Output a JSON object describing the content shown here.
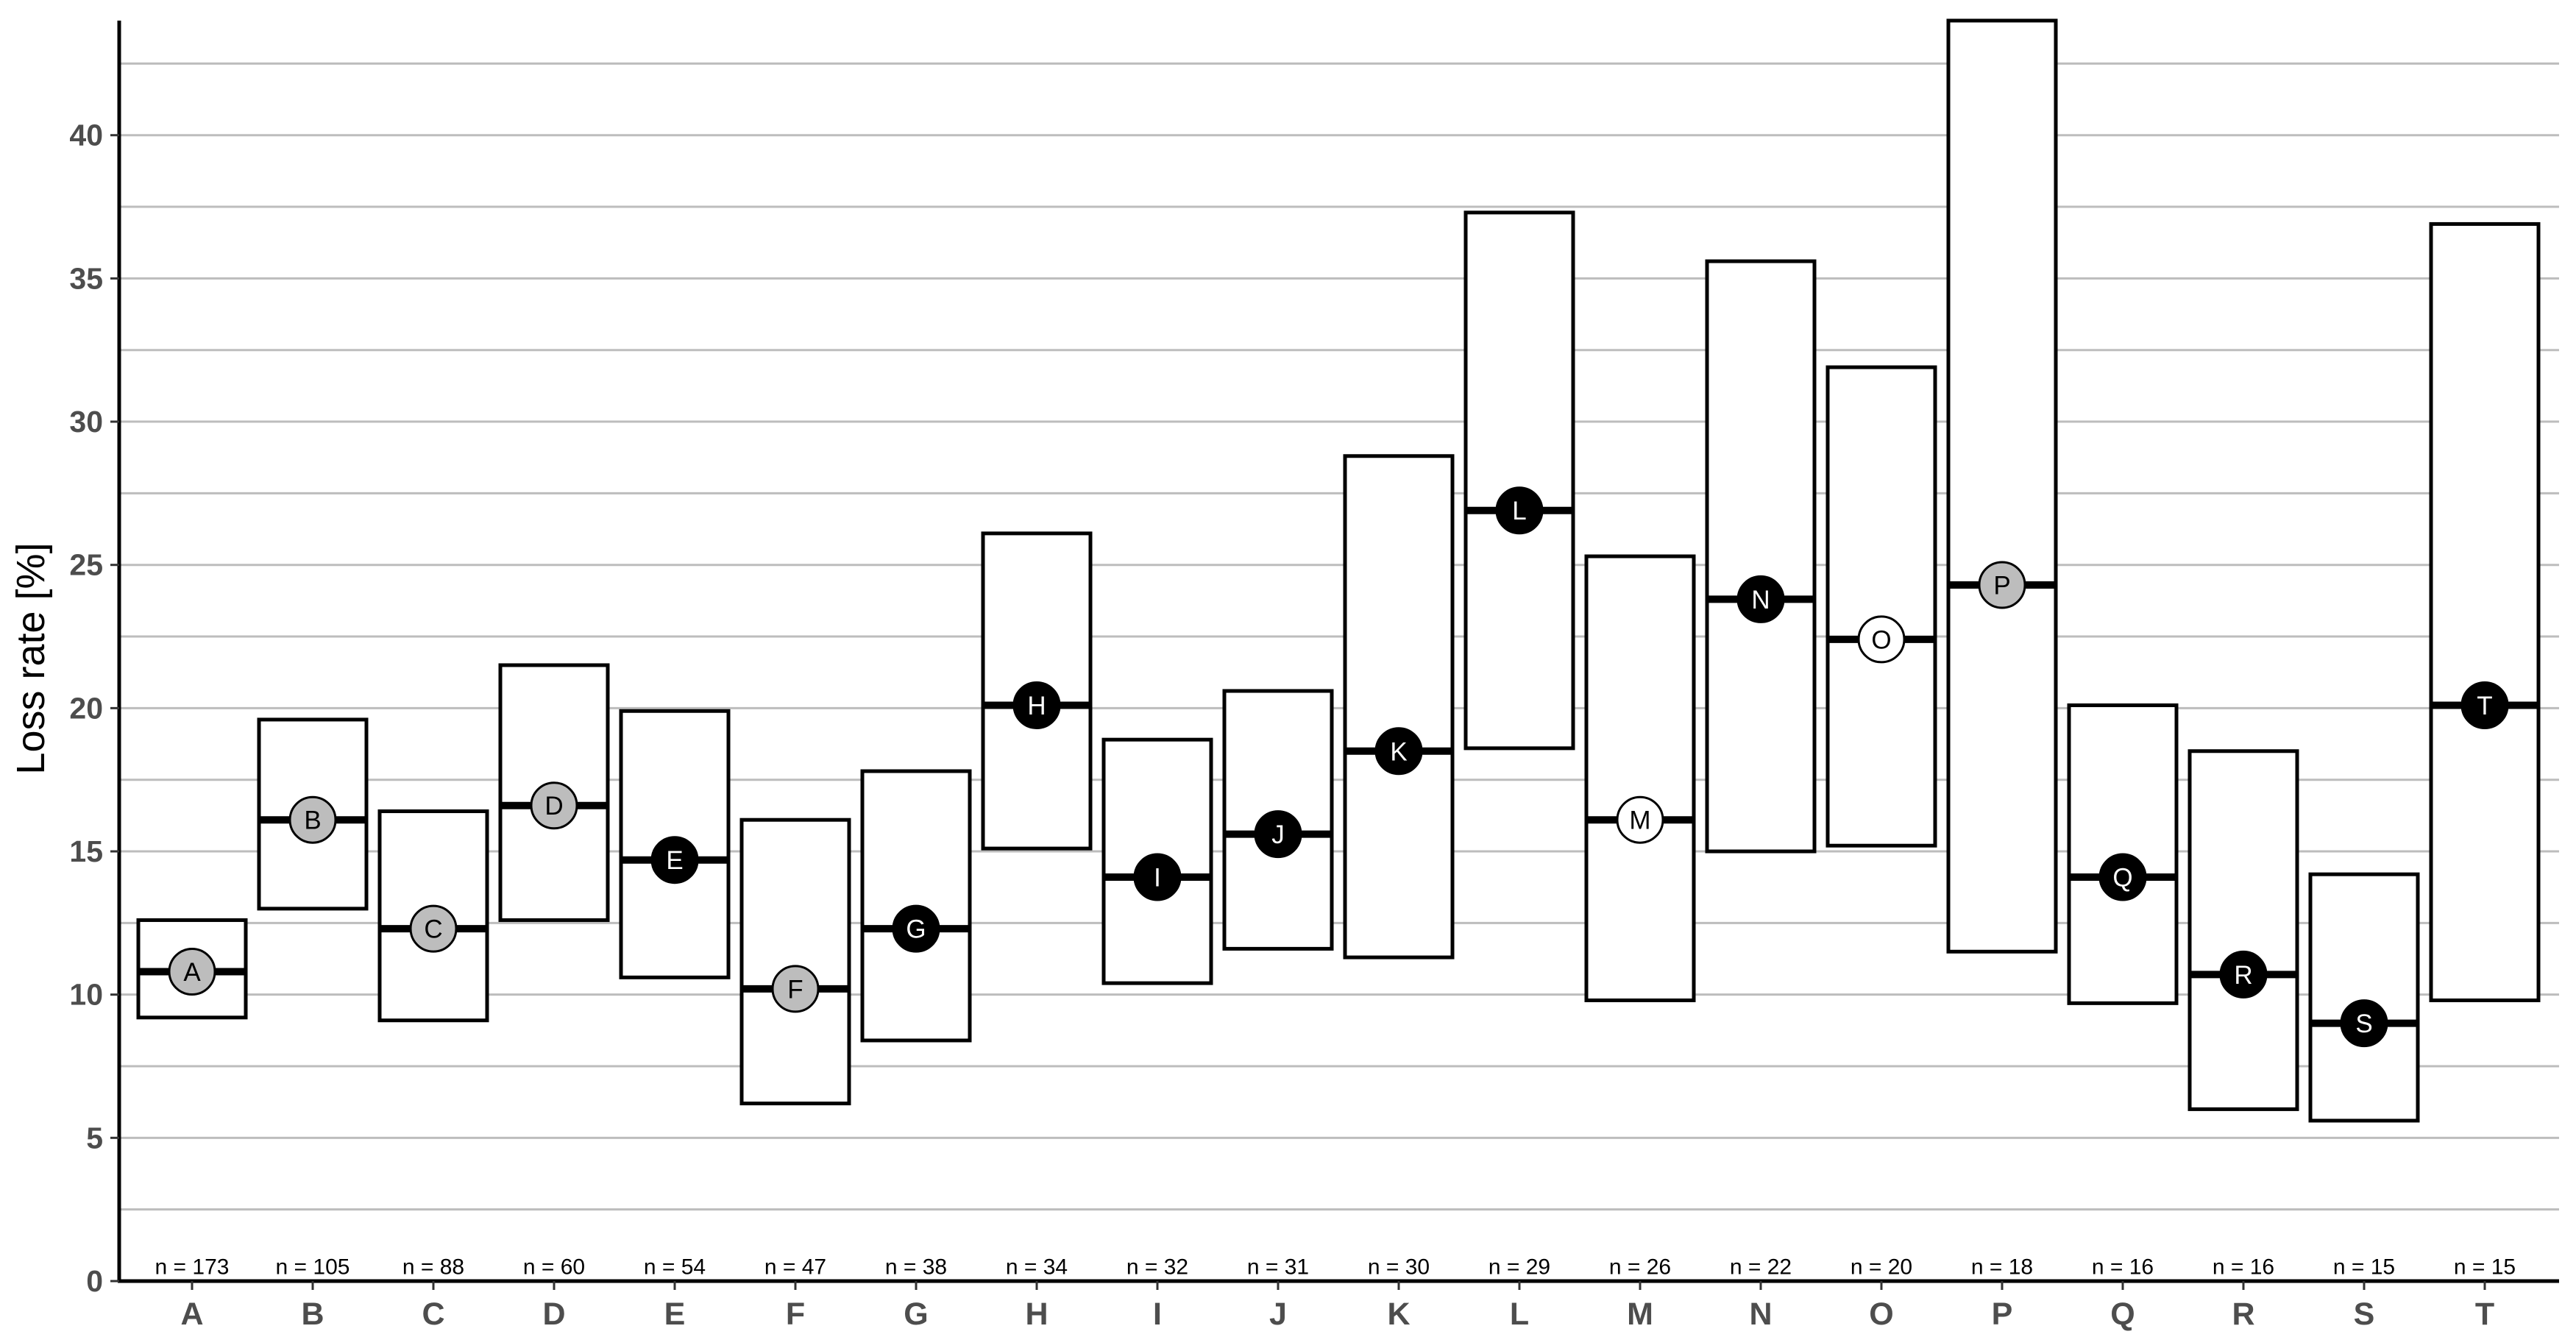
{
  "chart_data": {
    "type": "box",
    "title": "",
    "xlabel": "",
    "ylabel": "Loss rate [%]",
    "ylim": [
      0,
      44
    ],
    "yticks": [
      0,
      5,
      10,
      15,
      20,
      25,
      30,
      35,
      40
    ],
    "grid": "horizontal",
    "categories": [
      "A",
      "B",
      "C",
      "D",
      "E",
      "F",
      "G",
      "H",
      "I",
      "J",
      "K",
      "L",
      "M",
      "N",
      "O",
      "P",
      "Q",
      "R",
      "S",
      "T"
    ],
    "n_labels": [
      "n = 173",
      "n = 105",
      "n = 88",
      "n = 60",
      "n = 54",
      "n = 47",
      "n = 38",
      "n = 34",
      "n = 32",
      "n = 31",
      "n = 30",
      "n = 29",
      "n = 26",
      "n = 22",
      "n = 20",
      "n = 18",
      "n = 16",
      "n = 16",
      "n = 15",
      "n = 15"
    ],
    "lower": [
      9.2,
      13.0,
      9.1,
      12.6,
      10.6,
      6.2,
      8.4,
      15.1,
      10.4,
      11.6,
      11.3,
      18.6,
      9.8,
      15.0,
      15.2,
      11.5,
      9.7,
      6.0,
      5.6,
      9.8
    ],
    "center": [
      10.8,
      16.1,
      12.3,
      16.6,
      14.7,
      10.2,
      12.3,
      20.1,
      14.1,
      15.6,
      18.5,
      26.9,
      16.1,
      23.8,
      22.4,
      24.3,
      14.1,
      10.7,
      9.0,
      20.1
    ],
    "upper": [
      12.6,
      19.6,
      16.4,
      21.5,
      19.9,
      16.1,
      17.8,
      26.1,
      18.9,
      20.6,
      28.8,
      37.3,
      25.3,
      35.6,
      31.9,
      44.0,
      20.1,
      18.5,
      14.2,
      36.9
    ],
    "marker_fill": [
      "grey",
      "grey",
      "grey",
      "grey",
      "black",
      "grey",
      "black",
      "black",
      "black",
      "black",
      "black",
      "black",
      "white",
      "black",
      "white",
      "grey",
      "black",
      "black",
      "black",
      "black"
    ],
    "colors": {
      "grey": "#bdbdbd",
      "black": "#000000",
      "white": "#ffffff",
      "grid": "#bdbdbd",
      "tick_text": "#4d4d4d"
    }
  }
}
